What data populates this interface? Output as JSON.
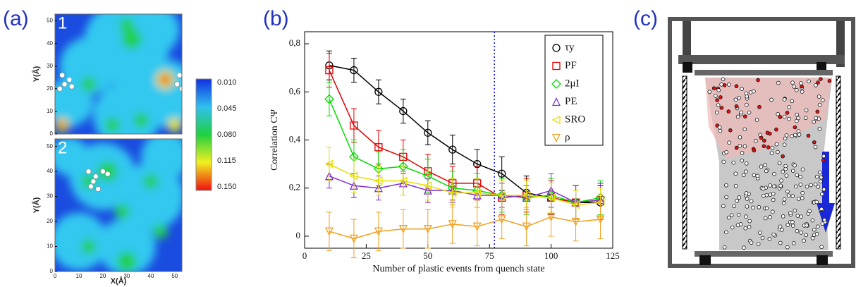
{
  "panel_a": {
    "label": "(a)",
    "maps": [
      {
        "label": "1"
      },
      {
        "label": "2"
      }
    ],
    "y_label": "Y(Å)",
    "x_label": "X(Å)",
    "ticks": [
      0,
      10,
      20,
      30,
      40,
      50
    ],
    "colorbar_ticks": [
      "0.010",
      "0.045",
      "0.080",
      "0.115",
      "0.150"
    ]
  },
  "panel_b": {
    "label": "(b)"
  },
  "panel_c": {
    "label": "(c)"
  },
  "chart_data": {
    "type": "line",
    "x_label": "Number of plastic events from quench state",
    "y_label": "Correlation CΨ",
    "x": [
      10,
      20,
      30,
      40,
      50,
      60,
      70,
      80,
      90,
      100,
      110,
      120
    ],
    "series": [
      {
        "name": "τy",
        "color": "#000000",
        "marker": "circle",
        "values": [
          0.71,
          0.69,
          0.6,
          0.52,
          0.43,
          0.36,
          0.3,
          0.26,
          0.18,
          0.16,
          0.14,
          0.14
        ],
        "errors": [
          0.06,
          0.05,
          0.05,
          0.05,
          0.05,
          0.06,
          0.06,
          0.07,
          0.07,
          0.07,
          0.07,
          0.07
        ]
      },
      {
        "name": "PF",
        "color": "#e00000",
        "marker": "square",
        "values": [
          0.69,
          0.46,
          0.37,
          0.33,
          0.27,
          0.22,
          0.22,
          0.16,
          0.17,
          0.16,
          0.14,
          0.15
        ],
        "errors": [
          0.07,
          0.07,
          0.07,
          0.07,
          0.07,
          0.07,
          0.07,
          0.07,
          0.07,
          0.07,
          0.07,
          0.07
        ]
      },
      {
        "name": "2μI",
        "color": "#00dd00",
        "marker": "diamond",
        "values": [
          0.57,
          0.33,
          0.28,
          0.29,
          0.25,
          0.2,
          0.19,
          0.17,
          0.16,
          0.17,
          0.14,
          0.16
        ],
        "errors": [
          0.07,
          0.07,
          0.07,
          0.07,
          0.07,
          0.07,
          0.07,
          0.07,
          0.07,
          0.07,
          0.07,
          0.07
        ]
      },
      {
        "name": "PE",
        "color": "#8030d0",
        "marker": "triangle-up",
        "values": [
          0.25,
          0.21,
          0.2,
          0.22,
          0.19,
          0.19,
          0.17,
          0.17,
          0.16,
          0.19,
          0.14,
          0.15
        ],
        "errors": [
          0.05,
          0.05,
          0.05,
          0.05,
          0.05,
          0.05,
          0.05,
          0.05,
          0.05,
          0.07,
          0.07,
          0.07
        ]
      },
      {
        "name": "SRO",
        "color": "#e8e000",
        "marker": "triangle-left",
        "values": [
          0.3,
          0.25,
          0.23,
          0.23,
          0.21,
          0.18,
          0.18,
          0.17,
          0.17,
          0.16,
          0.13,
          0.14
        ],
        "errors": [
          0.07,
          0.07,
          0.06,
          0.06,
          0.06,
          0.06,
          0.06,
          0.06,
          0.06,
          0.06,
          0.06,
          0.06
        ]
      },
      {
        "name": "ρ",
        "color": "#f0a020",
        "marker": "triangle-down",
        "values": [
          0.02,
          -0.01,
          0.02,
          0.03,
          0.03,
          0.05,
          0.04,
          0.07,
          0.04,
          0.08,
          0.06,
          0.07
        ],
        "errors": [
          0.08,
          0.08,
          0.08,
          0.08,
          0.08,
          0.08,
          0.08,
          0.08,
          0.08,
          0.08,
          0.08,
          0.08
        ]
      }
    ],
    "xlim": [
      0,
      125
    ],
    "xticks": [
      0,
      25,
      50,
      75,
      100,
      125
    ],
    "ylim": [
      -0.05,
      0.85
    ],
    "yticks": [
      0,
      {
        "value": 0.2,
        "label": "0,2"
      },
      {
        "value": 0.4,
        "label": "0,4"
      },
      {
        "value": 0.6,
        "label": "0,6"
      },
      {
        "value": 0.8,
        "label": "0,8"
      }
    ],
    "vline": {
      "x": 77,
      "color": "#0000ff"
    }
  }
}
